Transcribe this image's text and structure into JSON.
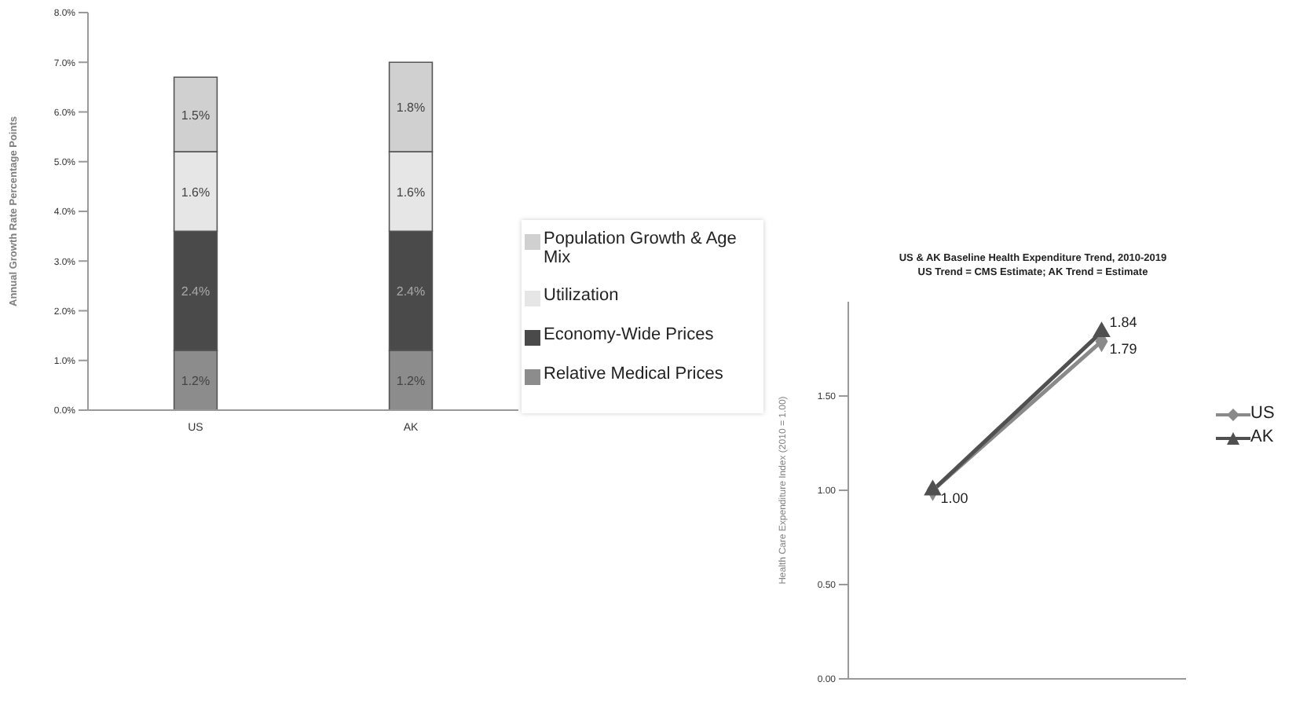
{
  "chart_data": [
    {
      "type": "bar",
      "stacked": true,
      "ylabel": "Annual Growth Rate Percentage Points",
      "categories": [
        "US",
        "AK"
      ],
      "ylim": [
        0,
        8
      ],
      "yticks": [
        {
          "value": 0,
          "label": "0.0%"
        },
        {
          "value": 1,
          "label": "1.0%"
        },
        {
          "value": 2,
          "label": "2.0%"
        },
        {
          "value": 3,
          "label": "3.0%"
        },
        {
          "value": 4,
          "label": "4.0%"
        },
        {
          "value": 5,
          "label": "5.0%"
        },
        {
          "value": 6,
          "label": "6.0%"
        },
        {
          "value": 7,
          "label": "7.0%"
        },
        {
          "value": 8,
          "label": "8.0%"
        }
      ],
      "legend": "right",
      "series": [
        {
          "name": "Relative Medical Prices",
          "color": "#8c8c8c",
          "values": [
            1.2,
            1.2
          ],
          "value_labels": [
            "1.2%",
            "1.2%"
          ]
        },
        {
          "name": "Economy-Wide Prices",
          "color": "#4a4a4a",
          "values": [
            2.4,
            2.4
          ],
          "value_labels": [
            "2.4%",
            "2.4%"
          ]
        },
        {
          "name": "Utilization",
          "color": "#e6e6e6",
          "values": [
            1.6,
            1.6
          ],
          "value_labels": [
            "1.6%",
            "1.6%"
          ]
        },
        {
          "name": "Population Growth & Age Mix",
          "color": "#d0d0d0",
          "values": [
            1.5,
            1.8
          ],
          "value_labels": [
            "1.5%",
            "1.8%"
          ]
        }
      ]
    },
    {
      "type": "line",
      "title": "US & AK Baseline Health Expenditure Trend, 2010-2019",
      "subtitle": "US Trend = CMS Estimate; AK Trend = Estimate",
      "ylabel": "Health Care Expenditure Index (2010 = 1.00)",
      "categories": [
        null,
        null
      ],
      "ylim": [
        0,
        2
      ],
      "yticks": [
        {
          "value": 0,
          "label": "0.00"
        },
        {
          "value": 0.5,
          "label": "0.50"
        },
        {
          "value": 1,
          "label": "1.00"
        },
        {
          "value": 1.5,
          "label": "1.50"
        }
      ],
      "legend": "right",
      "series": [
        {
          "name": "US",
          "color": "#8a8a8a",
          "marker": "diamond",
          "values": [
            1.0,
            1.79
          ],
          "value_labels": [
            null,
            "1.79"
          ]
        },
        {
          "name": "AK",
          "color": "#505050",
          "marker": "triangle",
          "values": [
            1.0,
            1.84
          ],
          "value_labels": [
            "1.00",
            "1.84"
          ]
        }
      ]
    }
  ]
}
